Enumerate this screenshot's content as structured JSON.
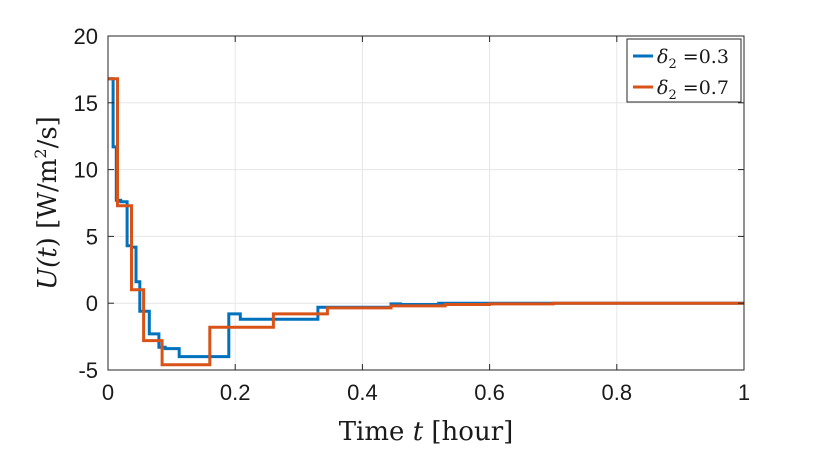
{
  "chart_data": {
    "type": "line",
    "step": true,
    "xlabel": {
      "prefix": "Time ",
      "var": "t",
      "suffix": " [hour]"
    },
    "ylabel": {
      "var_open": "U(",
      "var_t": "t",
      "var_close": ")",
      "units_pre": " [W/m",
      "units_sup": "2",
      "units_post": "/s]"
    },
    "xlim": [
      0,
      1
    ],
    "ylim": [
      -5,
      20
    ],
    "xticks": [
      0,
      0.2,
      0.4,
      0.6,
      0.8,
      1
    ],
    "xtick_labels": [
      "0",
      "0.2",
      "0.4",
      "0.6",
      "0.8",
      "1"
    ],
    "yticks": [
      -5,
      0,
      5,
      10,
      15,
      20
    ],
    "ytick_labels": [
      "-5",
      "0",
      "5",
      "10",
      "15",
      "20"
    ],
    "grid": true,
    "legend_position": "top-right",
    "series": [
      {
        "name": "0.3",
        "legend_symbol": "δ",
        "legend_sub": "2",
        "legend_eq": " =",
        "color": "#0072BD",
        "x": [
          0,
          0.008,
          0.013,
          0.02,
          0.03,
          0.037,
          0.044,
          0.05,
          0.058,
          0.065,
          0.08,
          0.09,
          0.112,
          0.15,
          0.19,
          0.208,
          0.26,
          0.33,
          0.36,
          0.445,
          0.46,
          0.52,
          0.6,
          0.7,
          1.0
        ],
        "y": [
          16.8,
          11.7,
          7.7,
          7.6,
          4.3,
          4.2,
          1.6,
          -0.6,
          -0.6,
          -2.3,
          -3.3,
          -3.4,
          -4.0,
          -4.0,
          -0.8,
          -1.2,
          -1.2,
          -0.3,
          -0.3,
          -0.05,
          -0.1,
          0.0,
          0.0,
          0.0,
          0.0
        ]
      },
      {
        "name": "0.7",
        "legend_symbol": "δ",
        "legend_sub": "2",
        "legend_eq": " =",
        "color": "#D95319",
        "x": [
          0,
          0.015,
          0.028,
          0.037,
          0.05,
          0.056,
          0.085,
          0.16,
          0.26,
          0.345,
          0.445,
          0.53,
          0.6,
          0.7,
          1.0
        ],
        "y": [
          16.8,
          7.3,
          7.3,
          1.0,
          1.0,
          -2.8,
          -4.6,
          -1.8,
          -0.8,
          -0.35,
          -0.2,
          -0.1,
          -0.05,
          0.0,
          0.0
        ]
      }
    ]
  }
}
